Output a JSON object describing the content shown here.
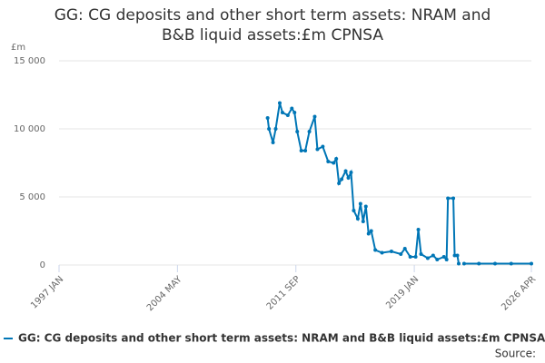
{
  "chart_data": {
    "type": "line",
    "title": "GG: CG deposits and other short term assets: NRAM and B&B liquid assets:£m CPNSA",
    "y_label": "£m",
    "source": "Source:",
    "x": [
      "2009-12",
      "2010-01",
      "2010-04",
      "2010-06",
      "2010-09",
      "2010-11",
      "2011-03",
      "2011-06",
      "2011-08",
      "2011-10",
      "2012-01",
      "2012-04",
      "2012-07",
      "2012-11",
      "2013-01",
      "2013-05",
      "2013-09",
      "2014-01",
      "2014-03",
      "2014-05",
      "2014-07",
      "2014-10",
      "2014-12",
      "2015-02",
      "2015-04",
      "2015-07",
      "2015-09",
      "2015-11",
      "2016-01",
      "2016-03",
      "2016-05",
      "2016-08",
      "2017-01",
      "2017-08",
      "2018-03",
      "2018-06",
      "2018-10",
      "2019-02",
      "2019-04",
      "2019-06",
      "2019-11",
      "2020-03",
      "2020-06",
      "2020-11",
      "2021-01",
      "2021-02",
      "2021-06",
      "2021-07",
      "2021-09",
      "2021-10",
      "2021-12",
      "2022-02",
      "2023-01",
      "2024-01",
      "2025-01",
      "2026-04"
    ],
    "series": [
      {
        "name": "GG: CG deposits and other short term assets: NRAM and B&B liquid assets:£m CPNSA",
        "color": "#0076b6",
        "values": [
          10800,
          10000,
          9000,
          10000,
          11900,
          11200,
          11000,
          11500,
          11200,
          9800,
          8400,
          8400,
          9800,
          10900,
          8500,
          8700,
          7600,
          7500,
          7800,
          6000,
          6300,
          6900,
          6400,
          6800,
          4000,
          3400,
          4500,
          3200,
          4300,
          2300,
          2500,
          1100,
          900,
          1000,
          800,
          1200,
          600,
          600,
          2600,
          800,
          500,
          700,
          400,
          600,
          400,
          4900,
          4900,
          700,
          700,
          100,
          null,
          100,
          100,
          100,
          100,
          100
        ]
      }
    ],
    "xlim": [
      "1997-01",
      "2026-04"
    ],
    "xticks": [
      {
        "value": "1997-01",
        "label": "1997 JAN"
      },
      {
        "value": "2004-05",
        "label": "2004 MAY"
      },
      {
        "value": "2011-09",
        "label": "2011 SEP"
      },
      {
        "value": "2019-01",
        "label": "2019 JAN"
      },
      {
        "value": "2026-04",
        "label": "2026 APR"
      }
    ],
    "ylim": [
      0,
      15000
    ],
    "yticks": [
      0,
      {
        "value": 5000,
        "label": "5 000"
      },
      {
        "value": 10000,
        "label": "10 000"
      },
      {
        "value": 15000,
        "label": "15 000"
      }
    ],
    "grid": true
  }
}
